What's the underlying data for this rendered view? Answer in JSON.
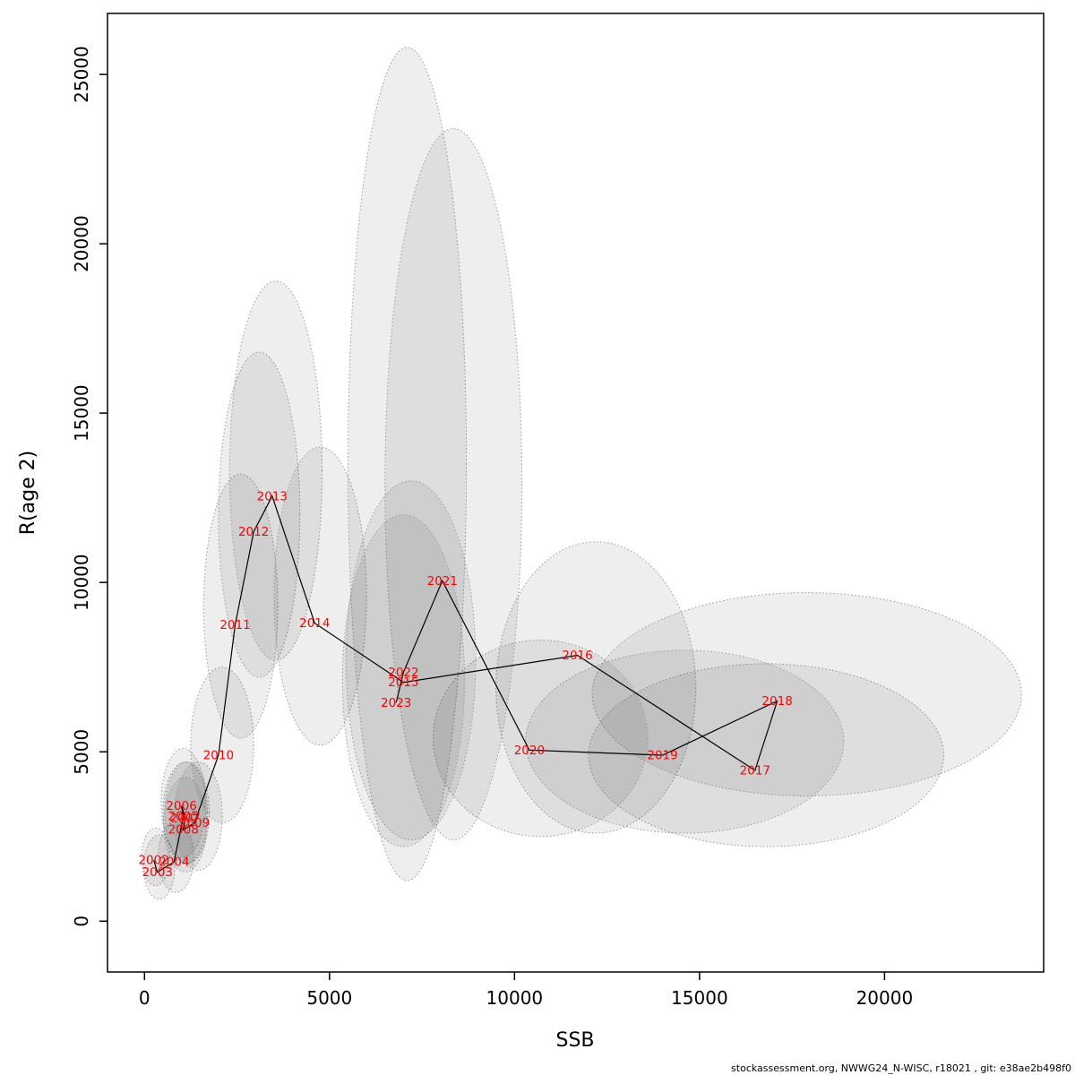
{
  "page": {
    "background": "#ffffff"
  },
  "footer": {
    "text": "stockassessment.org, NWWG24_N-WISC, r18021 , git: e38ae2b498f0"
  },
  "chart_data": {
    "type": "scatter",
    "title": "",
    "xlabel": "SSB",
    "ylabel": "R(age 2)",
    "xlim": [
      -1000,
      24300
    ],
    "ylim": [
      -1500,
      26800
    ],
    "xticks": [
      0,
      5000,
      10000,
      15000,
      20000
    ],
    "yticks": [
      0,
      5000,
      10000,
      15000,
      20000,
      25000
    ],
    "grid": false,
    "legend": "none",
    "label_color": "#ff0000",
    "line_color": "#000000",
    "ellipse_fill_opacity": 0.065,
    "ellipse_stroke": "#999999",
    "notes": "Stock-recruitment trajectory; years connected in chronological order, each point surrounded by a dotted grey confidence ellipse",
    "points": [
      {
        "year": "2002",
        "ssb": 250,
        "rec": 1800,
        "ellipse": {
          "cx": 300,
          "cy": 1900,
          "rx": 380,
          "ry": 850
        }
      },
      {
        "year": "2003",
        "ssb": 350,
        "rec": 1450,
        "ellipse": {
          "cx": 400,
          "cy": 1600,
          "rx": 420,
          "ry": 950
        }
      },
      {
        "year": "2004",
        "ssb": 800,
        "rec": 1750,
        "ellipse": {
          "cx": 850,
          "cy": 1900,
          "rx": 480,
          "ry": 1050
        }
      },
      {
        "year": "2005",
        "ssb": 1050,
        "rec": 3100,
        "ellipse": {
          "cx": 1100,
          "cy": 3200,
          "rx": 600,
          "ry": 1500
        }
      },
      {
        "year": "2006",
        "ssb": 1000,
        "rec": 3400,
        "ellipse": {
          "cx": 1050,
          "cy": 3500,
          "rx": 600,
          "ry": 1600
        }
      },
      {
        "year": "2007",
        "ssb": 1100,
        "rec": 3050,
        "ellipse": {
          "cx": 1150,
          "cy": 3200,
          "rx": 600,
          "ry": 1500
        }
      },
      {
        "year": "2008",
        "ssb": 1050,
        "rec": 2700,
        "ellipse": {
          "cx": 1100,
          "cy": 2850,
          "rx": 580,
          "ry": 1400
        }
      },
      {
        "year": "2009",
        "ssb": 1350,
        "rec": 2900,
        "ellipse": {
          "cx": 1450,
          "cy": 3100,
          "rx": 650,
          "ry": 1600
        }
      },
      {
        "year": "2010",
        "ssb": 2000,
        "rec": 4900,
        "ellipse": {
          "cx": 2100,
          "cy": 5200,
          "rx": 850,
          "ry": 2300
        }
      },
      {
        "year": "2011",
        "ssb": 2450,
        "rec": 8750,
        "ellipse": {
          "cx": 2600,
          "cy": 9300,
          "rx": 1000,
          "ry": 3900
        }
      },
      {
        "year": "2012",
        "ssb": 2950,
        "rec": 11500,
        "ellipse": {
          "cx": 3100,
          "cy": 12000,
          "rx": 1100,
          "ry": 4800
        }
      },
      {
        "year": "2013",
        "ssb": 3450,
        "rec": 12550,
        "ellipse": {
          "cx": 3550,
          "cy": 13300,
          "rx": 1250,
          "ry": 5600
        }
      },
      {
        "year": "2014",
        "ssb": 4600,
        "rec": 8800,
        "ellipse": {
          "cx": 4750,
          "cy": 9600,
          "rx": 1250,
          "ry": 4400
        }
      },
      {
        "year": "2015",
        "ssb": 7000,
        "rec": 7050,
        "ellipse": {
          "cx": 7100,
          "cy": 13500,
          "rx": 1600,
          "ry": 12300
        }
      },
      {
        "year": "2016",
        "ssb": 11700,
        "rec": 7850,
        "ellipse": {
          "cx": 12200,
          "cy": 6900,
          "rx": 2700,
          "ry": 4300
        }
      },
      {
        "year": "2017",
        "ssb": 16500,
        "rec": 4450,
        "ellipse": {
          "cx": 16800,
          "cy": 4900,
          "rx": 4800,
          "ry": 2700
        }
      },
      {
        "year": "2018",
        "ssb": 17100,
        "rec": 6500,
        "ellipse": {
          "cx": 17900,
          "cy": 6700,
          "rx": 5800,
          "ry": 3000
        }
      },
      {
        "year": "2019",
        "ssb": 14000,
        "rec": 4900,
        "ellipse": {
          "cx": 14600,
          "cy": 5300,
          "rx": 4300,
          "ry": 2700
        }
      },
      {
        "year": "2020",
        "ssb": 10400,
        "rec": 5050,
        "ellipse": {
          "cx": 10700,
          "cy": 5400,
          "rx": 2900,
          "ry": 2900
        }
      },
      {
        "year": "2021",
        "ssb": 8050,
        "rec": 10050,
        "ellipse": {
          "cx": 8350,
          "cy": 12900,
          "rx": 1850,
          "ry": 10500
        }
      },
      {
        "year": "2022",
        "ssb": 7000,
        "rec": 7350,
        "ellipse": {
          "cx": 7200,
          "cy": 7700,
          "rx": 1750,
          "ry": 5300
        }
      },
      {
        "year": "2023",
        "ssb": 6800,
        "rec": 6450,
        "ellipse": {
          "cx": 7000,
          "cy": 7100,
          "rx": 1650,
          "ry": 4900
        }
      }
    ]
  }
}
